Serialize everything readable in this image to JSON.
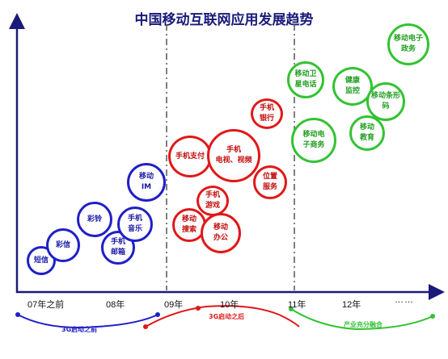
{
  "title": "中国移动互联网应用发展趋势",
  "x_axis": {
    "ticks": [
      "07年之前",
      "08年",
      "09年",
      "10年",
      "11年",
      "12年",
      "……"
    ]
  },
  "phases": [
    {
      "label": "3G启动之前",
      "color": "#1f1fc8"
    },
    {
      "label": "3G启动之后",
      "color": "#e01818"
    },
    {
      "label": "产业充分融合",
      "color": "#33c233"
    }
  ],
  "bubbles": {
    "blue": [
      {
        "label": "短信"
      },
      {
        "label": "彩信"
      },
      {
        "label": "彩铃"
      },
      {
        "label": "手机\n邮箱"
      },
      {
        "label": "手机\n音乐"
      },
      {
        "label": "移动\nIM"
      }
    ],
    "red": [
      {
        "label": "手机支付"
      },
      {
        "label": "手机\n电视、视频"
      },
      {
        "label": "手机\n银行"
      },
      {
        "label": "位置\n服务"
      },
      {
        "label": "手机\n游戏"
      },
      {
        "label": "移动\n搜索"
      },
      {
        "label": "移动\n办公"
      }
    ],
    "green": [
      {
        "label": "移动卫\n星电话"
      },
      {
        "label": "移动电子\n政务"
      },
      {
        "label": "健康\n监控"
      },
      {
        "label": "移动条形\n码"
      },
      {
        "label": "移动电\n子商务"
      },
      {
        "label": "移动\n教育"
      }
    ]
  },
  "colors": {
    "blue": "#1f1fc8",
    "red": "#e01818",
    "green": "#33c233",
    "axis": "#1a1a7a"
  }
}
